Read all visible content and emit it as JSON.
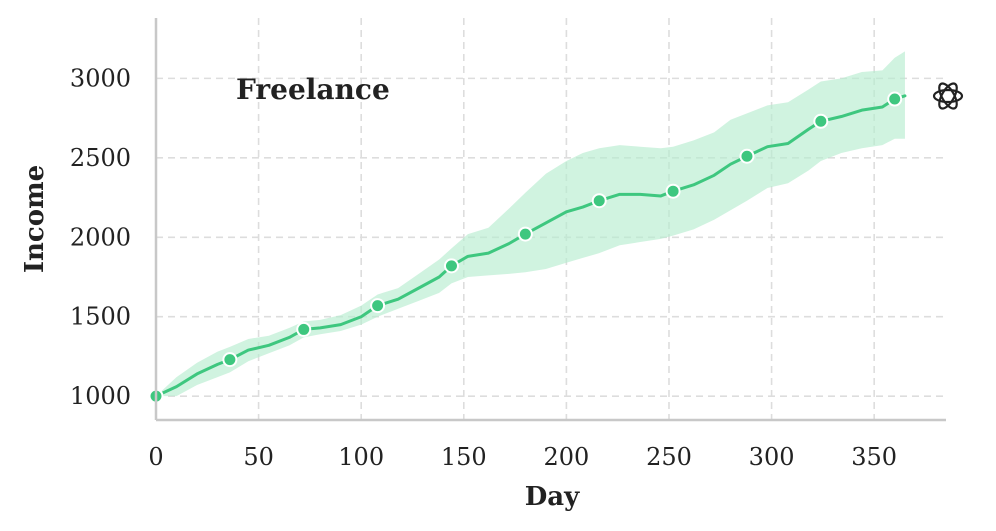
{
  "chart_data": {
    "type": "line",
    "title": "Freelance",
    "xlabel": "Day",
    "ylabel": "Income",
    "xlim": [
      0,
      385
    ],
    "ylim": [
      850,
      3380
    ],
    "xticks": [
      0,
      50,
      100,
      150,
      200,
      250,
      300,
      350
    ],
    "yticks": [
      1000,
      1500,
      2000,
      2500,
      3000
    ],
    "grid": true,
    "grid_style": "dashed",
    "legend": "none",
    "colors": {
      "line": "#3ec77f",
      "band": "#b7ecd0",
      "grid": "#dddddd",
      "axis": "#c8c8c8",
      "marker_edge": "#ffffff"
    },
    "icon": "openai-logo-icon",
    "series": [
      {
        "kind": "line_with_interval",
        "x": [
          0,
          10,
          20,
          30,
          36,
          45,
          55,
          65,
          72,
          80,
          90,
          100,
          108,
          118,
          128,
          138,
          144,
          152,
          162,
          172,
          180,
          190,
          200,
          208,
          216,
          226,
          236,
          246,
          252,
          262,
          272,
          280,
          288,
          298,
          308,
          318,
          324,
          334,
          344,
          354,
          360,
          365
        ],
        "y": [
          1000,
          1060,
          1140,
          1200,
          1230,
          1290,
          1320,
          1370,
          1420,
          1430,
          1450,
          1500,
          1570,
          1610,
          1680,
          1750,
          1820,
          1880,
          1900,
          1960,
          2020,
          2090,
          2160,
          2190,
          2230,
          2270,
          2270,
          2260,
          2290,
          2330,
          2390,
          2460,
          2510,
          2570,
          2590,
          2680,
          2730,
          2760,
          2800,
          2820,
          2870,
          2890
        ],
        "lower": [
          1000,
          1000,
          1070,
          1120,
          1150,
          1220,
          1270,
          1320,
          1370,
          1390,
          1410,
          1450,
          1500,
          1550,
          1600,
          1650,
          1710,
          1750,
          1760,
          1770,
          1780,
          1800,
          1840,
          1870,
          1900,
          1950,
          1970,
          1990,
          2010,
          2050,
          2110,
          2170,
          2230,
          2310,
          2340,
          2420,
          2480,
          2530,
          2560,
          2580,
          2620,
          2620
        ],
        "upper": [
          1000,
          1120,
          1210,
          1280,
          1310,
          1360,
          1380,
          1430,
          1470,
          1480,
          1510,
          1570,
          1640,
          1680,
          1770,
          1860,
          1930,
          2020,
          2060,
          2180,
          2280,
          2400,
          2480,
          2530,
          2560,
          2580,
          2570,
          2560,
          2570,
          2610,
          2660,
          2740,
          2780,
          2830,
          2850,
          2930,
          2980,
          3000,
          3040,
          3050,
          3130,
          3170
        ]
      },
      {
        "kind": "markers",
        "x": [
          0,
          36,
          72,
          108,
          144,
          180,
          216,
          252,
          288,
          324,
          360
        ],
        "y": [
          1000,
          1230,
          1420,
          1570,
          1820,
          2020,
          2230,
          2290,
          2510,
          2730,
          2870
        ]
      }
    ]
  }
}
